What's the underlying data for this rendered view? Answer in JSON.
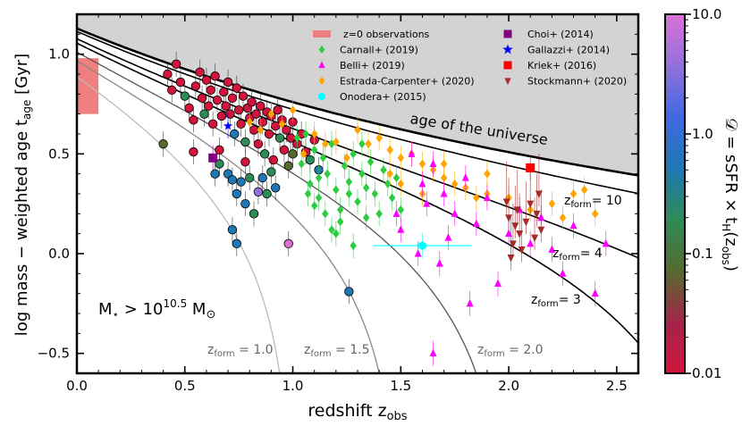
{
  "chart_data": {
    "type": "scatter",
    "xlabel_main": "redshift z",
    "xlabel_sub": "obs",
    "ylabel_main": "log mass − weighted age t",
    "ylabel_sub": "age",
    "ylabel_unit": "[Gyr]",
    "xlim": [
      0.0,
      2.6
    ],
    "ylim": [
      -0.6,
      1.2
    ],
    "x_ticks": [
      0.0,
      0.5,
      1.0,
      1.5,
      2.0,
      2.5
    ],
    "x_tick_labels": [
      "0.0",
      "0.5",
      "1.0",
      "1.5",
      "2.0",
      "2.5"
    ],
    "y_ticks": [
      -0.5,
      0.0,
      0.5,
      1.0
    ],
    "y_tick_labels": [
      "−0.5",
      "0.0",
      "0.5",
      "1.0"
    ],
    "annotation_universe": "age of the universe",
    "mass_cut": {
      "main": "M",
      "sub": "⋆",
      "rest": " > 10",
      "sup": "10.5",
      "tail": " M",
      "sun": "⊙"
    },
    "zform_prefix": "z",
    "zform_sub": "form",
    "zform_curves": [
      {
        "zform": 1.0,
        "label": "1.0",
        "style": "gray"
      },
      {
        "zform": 1.5,
        "label": "1.5",
        "style": "gray"
      },
      {
        "zform": 2.0,
        "label": "2.0",
        "style": "gray"
      },
      {
        "zform": 3,
        "label": "= 3",
        "style": "black"
      },
      {
        "zform": 4,
        "label": "= 4",
        "style": "black"
      },
      {
        "zform": 10,
        "label": "= 10",
        "style": "black"
      }
    ],
    "legend": [
      {
        "label": "z=0 observations",
        "marker": "rect",
        "color": "#f08080"
      },
      {
        "label": "Carnall+ (2019)",
        "marker": "diamond",
        "color": "#2ecc40"
      },
      {
        "label": "Belli+ (2019)",
        "marker": "triangle",
        "color": "#ff00ff"
      },
      {
        "label": "Estrada-Carpenter+ (2020)",
        "marker": "diamond",
        "color": "#ffa500"
      },
      {
        "label": "Onodera+ (2015)",
        "marker": "hexagon",
        "color": "#00ffff"
      },
      {
        "label": "Choi+ (2014)",
        "marker": "square",
        "color": "#800080"
      },
      {
        "label": "Gallazzi+ (2014)",
        "marker": "star",
        "color": "#0000ff"
      },
      {
        "label": "Kriek+ (2016)",
        "marker": "square",
        "color": "#ff0000"
      },
      {
        "label": "Stockmann+ (2020)",
        "marker": "tri_down",
        "color": "#a52a2a"
      }
    ],
    "colorbar": {
      "label_main": "𝒟 = sSFR × t",
      "label_sub": "H",
      "label_tail": "(z",
      "label_sub2": "obs",
      "label_end": ")",
      "scale": "log",
      "range": [
        0.01,
        10.0
      ],
      "ticks": [
        "0.01",
        "0.1",
        "1.0",
        "10.0"
      ],
      "colors": [
        "#d2143c",
        "#a3254a",
        "#556b2f",
        "#2e8b57",
        "#1f77b4",
        "#4169e1",
        "#9370db",
        "#da70d6"
      ]
    },
    "series": [
      {
        "name": "Leja 2019 circles (colored by D)",
        "marker": "circle",
        "points": [
          [
            0.4,
            0.55,
            "#556b2f"
          ],
          [
            0.42,
            0.9,
            "#d2143c"
          ],
          [
            0.44,
            0.82,
            "#d2143c"
          ],
          [
            0.46,
            0.95,
            "#d2143c"
          ],
          [
            0.48,
            0.86,
            "#d2143c"
          ],
          [
            0.5,
            0.79,
            "#2e8b57"
          ],
          [
            0.52,
            0.73,
            "#d2143c"
          ],
          [
            0.54,
            0.67,
            "#d2143c"
          ],
          [
            0.55,
            0.84,
            "#d2143c"
          ],
          [
            0.57,
            0.91,
            "#d2143c"
          ],
          [
            0.58,
            0.78,
            "#d2143c"
          ],
          [
            0.59,
            0.7,
            "#2e8b57"
          ],
          [
            0.6,
            0.87,
            "#d2143c"
          ],
          [
            0.61,
            0.74,
            "#d2143c"
          ],
          [
            0.62,
            0.82,
            "#d2143c"
          ],
          [
            0.63,
            0.65,
            "#d2143c"
          ],
          [
            0.64,
            0.89,
            "#d2143c"
          ],
          [
            0.65,
            0.77,
            "#d2143c"
          ],
          [
            0.66,
            0.52,
            "#d2143c"
          ],
          [
            0.66,
            0.45,
            "#2e8b57"
          ],
          [
            0.67,
            0.69,
            "#d2143c"
          ],
          [
            0.68,
            0.81,
            "#d2143c"
          ],
          [
            0.69,
            0.74,
            "#d2143c"
          ],
          [
            0.7,
            0.86,
            "#d2143c"
          ],
          [
            0.71,
            0.7,
            "#d2143c"
          ],
          [
            0.72,
            0.78,
            "#d2143c"
          ],
          [
            0.73,
            0.6,
            "#1f77b4"
          ],
          [
            0.74,
            0.83,
            "#d2143c"
          ],
          [
            0.75,
            0.72,
            "#d2143c"
          ],
          [
            0.76,
            0.65,
            "#d2143c"
          ],
          [
            0.77,
            0.79,
            "#d2143c"
          ],
          [
            0.78,
            0.56,
            "#2e8b57"
          ],
          [
            0.79,
            0.73,
            "#d2143c"
          ],
          [
            0.8,
            0.68,
            "#d2143c"
          ],
          [
            0.81,
            0.76,
            "#d2143c"
          ],
          [
            0.82,
            0.62,
            "#d2143c"
          ],
          [
            0.83,
            0.7,
            "#d2143c"
          ],
          [
            0.84,
            0.55,
            "#d2143c"
          ],
          [
            0.85,
            0.74,
            "#d2143c"
          ],
          [
            0.86,
            0.66,
            "#d2143c"
          ],
          [
            0.87,
            0.5,
            "#2e8b57"
          ],
          [
            0.88,
            0.71,
            "#d2143c"
          ],
          [
            0.89,
            0.6,
            "#d2143c"
          ],
          [
            0.9,
            0.69,
            "#d2143c"
          ],
          [
            0.91,
            0.47,
            "#d2143c"
          ],
          [
            0.92,
            0.64,
            "#d2143c"
          ],
          [
            0.93,
            0.72,
            "#d2143c"
          ],
          [
            0.94,
            0.58,
            "#2e8b57"
          ],
          [
            0.95,
            0.67,
            "#d2143c"
          ],
          [
            0.96,
            0.52,
            "#d2143c"
          ],
          [
            0.97,
            0.62,
            "#d2143c"
          ],
          [
            0.98,
            0.44,
            "#556b2f"
          ],
          [
            0.99,
            0.58,
            "#d2143c"
          ],
          [
            1.0,
            0.66,
            "#d2143c"
          ],
          [
            1.02,
            0.55,
            "#d2143c"
          ],
          [
            1.04,
            0.6,
            "#d2143c"
          ],
          [
            1.06,
            0.51,
            "#d2143c"
          ],
          [
            1.08,
            0.47,
            "#2e8b57"
          ],
          [
            1.1,
            0.57,
            "#d2143c"
          ],
          [
            1.12,
            0.42,
            "#1f77b4"
          ],
          [
            0.7,
            0.4,
            "#1f77b4"
          ],
          [
            0.72,
            0.37,
            "#1f77b4"
          ],
          [
            0.74,
            0.3,
            "#1f77b4"
          ],
          [
            0.76,
            0.36,
            "#1f77b4"
          ],
          [
            0.78,
            0.25,
            "#1f77b4"
          ],
          [
            0.8,
            0.38,
            "#2e8b57"
          ],
          [
            0.82,
            0.2,
            "#2e8b57"
          ],
          [
            0.86,
            0.38,
            "#1f77b4"
          ],
          [
            0.88,
            0.3,
            "#2e8b57"
          ],
          [
            0.9,
            0.41,
            "#2e8b57"
          ],
          [
            0.92,
            0.33,
            "#1f77b4"
          ],
          [
            0.84,
            0.31,
            "#9370db"
          ],
          [
            0.72,
            0.12,
            "#1f77b4"
          ],
          [
            0.74,
            0.05,
            "#1f77b4"
          ],
          [
            0.64,
            0.4,
            "#1f77b4"
          ],
          [
            0.98,
            0.05,
            "#da70d6"
          ],
          [
            1.26,
            -0.19,
            "#1f77b4"
          ],
          [
            0.54,
            0.51,
            "#d2143c"
          ],
          [
            0.78,
            0.46,
            "#d2143c"
          ],
          [
            1.0,
            0.5,
            "#556b2f"
          ]
        ]
      },
      {
        "name": "Carnall+ (2019)",
        "marker": "diamond",
        "color": "#2ecc40",
        "points": [
          [
            1.02,
            0.58
          ],
          [
            1.04,
            0.45
          ],
          [
            1.06,
            0.6
          ],
          [
            1.08,
            0.35
          ],
          [
            1.1,
            0.52
          ],
          [
            1.12,
            0.28
          ],
          [
            1.14,
            0.48
          ],
          [
            1.16,
            0.4
          ],
          [
            1.18,
            0.55
          ],
          [
            1.2,
            0.32
          ],
          [
            1.22,
            0.22
          ],
          [
            1.24,
            0.44
          ],
          [
            1.26,
            0.36
          ],
          [
            1.28,
            0.5
          ],
          [
            1.3,
            0.26
          ],
          [
            1.32,
            0.4
          ],
          [
            1.34,
            0.33
          ],
          [
            1.36,
            0.46
          ],
          [
            1.38,
            0.3
          ],
          [
            1.4,
            0.2
          ],
          [
            1.42,
            0.42
          ],
          [
            1.44,
            0.35
          ],
          [
            1.46,
            0.28
          ],
          [
            1.48,
            0.38
          ],
          [
            1.5,
            0.22
          ],
          [
            1.15,
            0.2
          ],
          [
            1.18,
            0.12
          ],
          [
            1.22,
            0.16
          ],
          [
            1.1,
            0.24
          ],
          [
            1.28,
            0.04
          ],
          [
            1.34,
            0.18
          ],
          [
            1.2,
            0.1
          ],
          [
            1.26,
            0.3
          ],
          [
            1.32,
            0.55
          ],
          [
            1.07,
            0.3
          ],
          [
            1.12,
            0.38
          ]
        ]
      },
      {
        "name": "Estrada-Carpenter+ (2020)",
        "marker": "diamond",
        "color": "#ffa500",
        "points": [
          [
            0.9,
            0.7
          ],
          [
            0.95,
            0.65
          ],
          [
            1.0,
            0.72
          ],
          [
            1.1,
            0.6
          ],
          [
            1.2,
            0.56
          ],
          [
            1.3,
            0.62
          ],
          [
            1.35,
            0.55
          ],
          [
            1.4,
            0.58
          ],
          [
            1.45,
            0.52
          ],
          [
            1.5,
            0.48
          ],
          [
            1.55,
            0.5
          ],
          [
            1.6,
            0.45
          ],
          [
            1.65,
            0.42
          ],
          [
            1.7,
            0.38
          ],
          [
            1.75,
            0.35
          ],
          [
            1.8,
            0.33
          ],
          [
            1.9,
            0.3
          ],
          [
            2.0,
            0.28
          ],
          [
            2.1,
            0.22
          ],
          [
            2.2,
            0.25
          ],
          [
            2.3,
            0.3
          ],
          [
            2.35,
            0.32
          ],
          [
            2.4,
            0.2
          ],
          [
            1.5,
            0.35
          ],
          [
            1.6,
            0.3
          ],
          [
            1.85,
            0.28
          ],
          [
            1.45,
            0.4
          ],
          [
            1.7,
            0.45
          ],
          [
            1.9,
            0.4
          ],
          [
            2.25,
            0.18
          ],
          [
            1.05,
            0.5
          ],
          [
            1.15,
            0.55
          ],
          [
            1.25,
            0.48
          ],
          [
            0.85,
            0.62
          ],
          [
            0.8,
            0.66
          ]
        ]
      },
      {
        "name": "Belli+ (2019)",
        "marker": "triangle",
        "color": "#ff00ff",
        "points": [
          [
            1.55,
            0.5
          ],
          [
            1.6,
            0.35
          ],
          [
            1.62,
            0.25
          ],
          [
            1.65,
            0.45
          ],
          [
            1.7,
            0.3
          ],
          [
            1.75,
            0.2
          ],
          [
            1.8,
            0.38
          ],
          [
            1.85,
            0.15
          ],
          [
            1.9,
            0.28
          ],
          [
            2.0,
            0.1
          ],
          [
            2.05,
            0.22
          ],
          [
            2.1,
            0.05
          ],
          [
            2.15,
            0.18
          ],
          [
            2.2,
            0.02
          ],
          [
            2.3,
            0.14
          ],
          [
            2.4,
            -0.2
          ],
          [
            2.45,
            0.05
          ],
          [
            1.5,
            0.12
          ],
          [
            1.58,
            0.0
          ],
          [
            1.68,
            -0.05
          ],
          [
            1.72,
            0.08
          ],
          [
            1.82,
            -0.25
          ],
          [
            1.95,
            -0.15
          ],
          [
            1.65,
            -0.5
          ],
          [
            1.48,
            0.2
          ],
          [
            2.25,
            -0.1
          ]
        ]
      },
      {
        "name": "Onodera+ (2015)",
        "marker": "hexagon",
        "color": "#00ffff",
        "points": [
          [
            1.6,
            0.04
          ]
        ]
      },
      {
        "name": "Choi+ (2014)",
        "marker": "square",
        "color": "#800080",
        "points": [
          [
            0.63,
            0.48
          ]
        ]
      },
      {
        "name": "Gallazzi+ (2014)",
        "marker": "star",
        "color": "#0000ff",
        "points": [
          [
            0.7,
            0.64
          ]
        ]
      },
      {
        "name": "Kriek+ (2016)",
        "marker": "square",
        "color": "#ff0000",
        "points": [
          [
            2.1,
            0.43
          ]
        ]
      },
      {
        "name": "Stockmann+ (2020)",
        "marker": "tri_down",
        "color": "#a52a2a",
        "points": [
          [
            2.0,
            0.18
          ],
          [
            2.02,
            0.05
          ],
          [
            2.03,
            0.14
          ],
          [
            2.04,
            0.22
          ],
          [
            2.05,
            0.1
          ],
          [
            2.06,
            0.02
          ],
          [
            2.08,
            0.16
          ],
          [
            2.1,
            0.25
          ],
          [
            2.12,
            0.08
          ],
          [
            2.13,
            0.2
          ],
          [
            2.14,
            0.3
          ],
          [
            2.15,
            0.12
          ],
          [
            1.99,
            0.26
          ],
          [
            2.01,
            -0.02
          ]
        ]
      }
    ]
  }
}
